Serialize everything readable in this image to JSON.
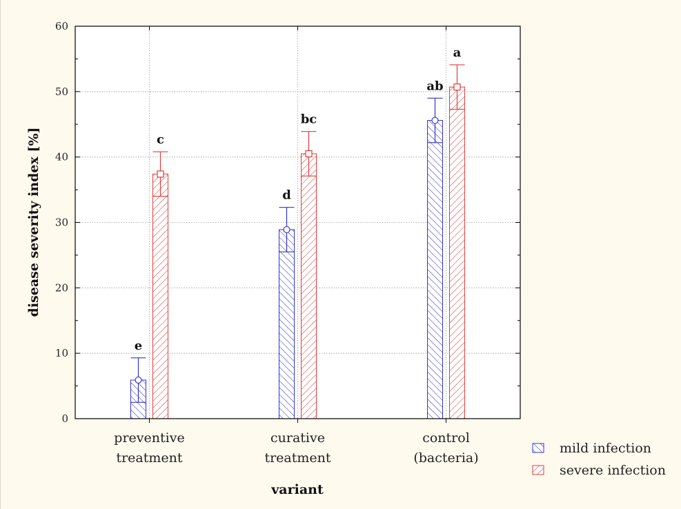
{
  "chart_data": {
    "type": "bar",
    "xlabel": "variant",
    "ylabel": "disease severity index [%]",
    "ylim": [
      0,
      60
    ],
    "yticks": [
      0,
      10,
      20,
      30,
      40,
      50,
      60
    ],
    "grid": true,
    "legend_position": "bottom-right outside",
    "categories": [
      [
        "preventive",
        "treatment"
      ],
      [
        "curative",
        "treatment"
      ],
      [
        "control",
        "(bacteria)"
      ]
    ],
    "series": [
      {
        "name": "mild infection",
        "color": "#3333cc",
        "values": [
          5.9,
          28.9,
          45.6
        ],
        "error_low": [
          2.5,
          25.5,
          42.2
        ],
        "error_high": [
          9.3,
          32.3,
          49.0
        ],
        "letters": [
          "e",
          "d",
          "ab"
        ]
      },
      {
        "name": "severe infection",
        "color": "#e03c3c",
        "values": [
          37.4,
          40.5,
          50.7
        ],
        "error_low": [
          34.0,
          37.1,
          47.3
        ],
        "error_high": [
          40.8,
          43.9,
          54.1
        ],
        "letters": [
          "c",
          "bc",
          "a"
        ]
      }
    ]
  }
}
